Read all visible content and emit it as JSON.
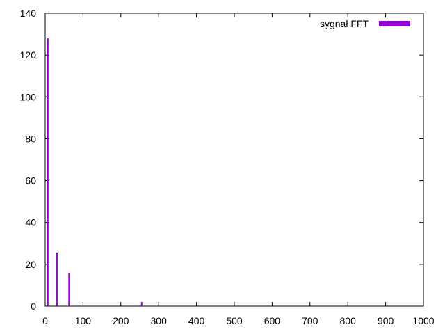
{
  "chart_data": {
    "type": "bar",
    "title": "",
    "xlabel": "",
    "ylabel": "",
    "xlim": [
      0,
      1000
    ],
    "ylim": [
      0,
      140
    ],
    "x_ticks": [
      0,
      100,
      200,
      300,
      400,
      500,
      600,
      700,
      800,
      900,
      1000
    ],
    "y_ticks": [
      0,
      20,
      40,
      60,
      80,
      100,
      120,
      140
    ],
    "grid": false,
    "legend_position": "top-right",
    "series": [
      {
        "name": "sygnał FFT",
        "color": "#9400d3",
        "points": [
          {
            "x": 8,
            "y": 128
          },
          {
            "x": 32,
            "y": 25.6
          },
          {
            "x": 64,
            "y": 16
          },
          {
            "x": 256,
            "y": 2
          }
        ]
      }
    ]
  }
}
